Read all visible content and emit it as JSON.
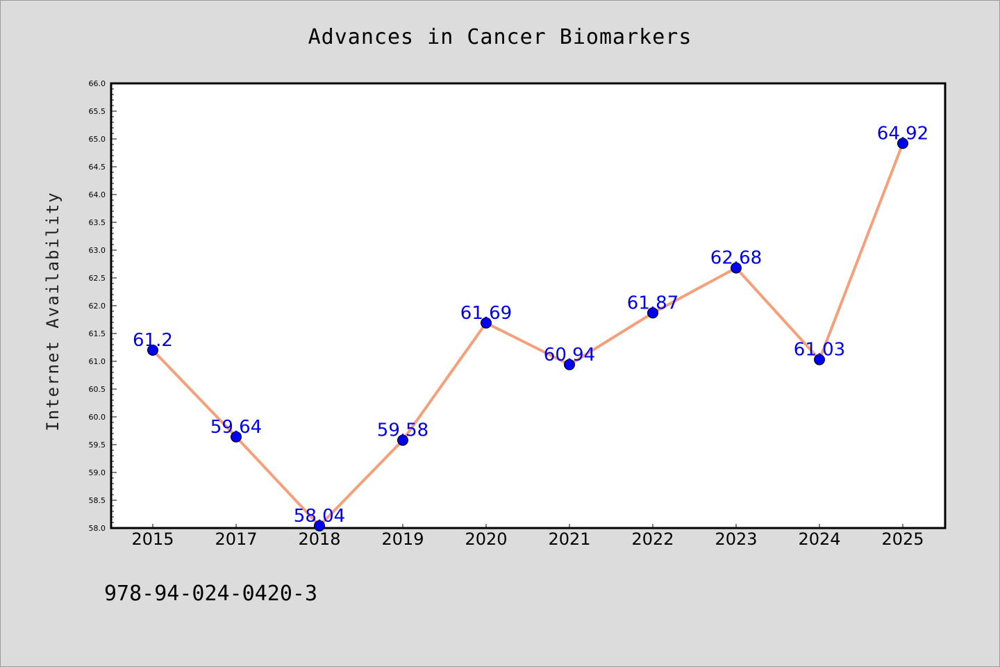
{
  "chart_data": {
    "type": "line",
    "title": "Advances in Cancer Biomarkers",
    "xlabel": "",
    "ylabel": "Internet Availability",
    "categories": [
      "2015",
      "2017",
      "2018",
      "2019",
      "2020",
      "2021",
      "2022",
      "2023",
      "2024",
      "2025"
    ],
    "series": [
      {
        "values": [
          61.2,
          59.64,
          58.04,
          59.58,
          61.69,
          60.94,
          61.87,
          62.68,
          61.03,
          64.92
        ],
        "data_labels": [
          "61.2",
          "59.64",
          "58.04",
          "59.58",
          "61.69",
          "60.94",
          "61.87",
          "62.68",
          "61.03",
          "64.92"
        ],
        "line_color": "#f4a07a",
        "marker_color": "#0000ee"
      }
    ],
    "ylim": [
      58.0,
      66.0
    ],
    "yticks": [
      "58.0",
      "58.5",
      "59.0",
      "59.5",
      "60.0",
      "60.5",
      "61.0",
      "61.5",
      "62.0",
      "62.5",
      "63.0",
      "63.5",
      "64.0",
      "64.5",
      "65.0",
      "65.5",
      "66.0"
    ],
    "grid": false,
    "legend": "none"
  },
  "footer_text": "978-94-024-0420-3",
  "colors": {
    "background": "#dcdcdc",
    "plot_background": "#ffffff",
    "label_text": "#0000ee"
  }
}
